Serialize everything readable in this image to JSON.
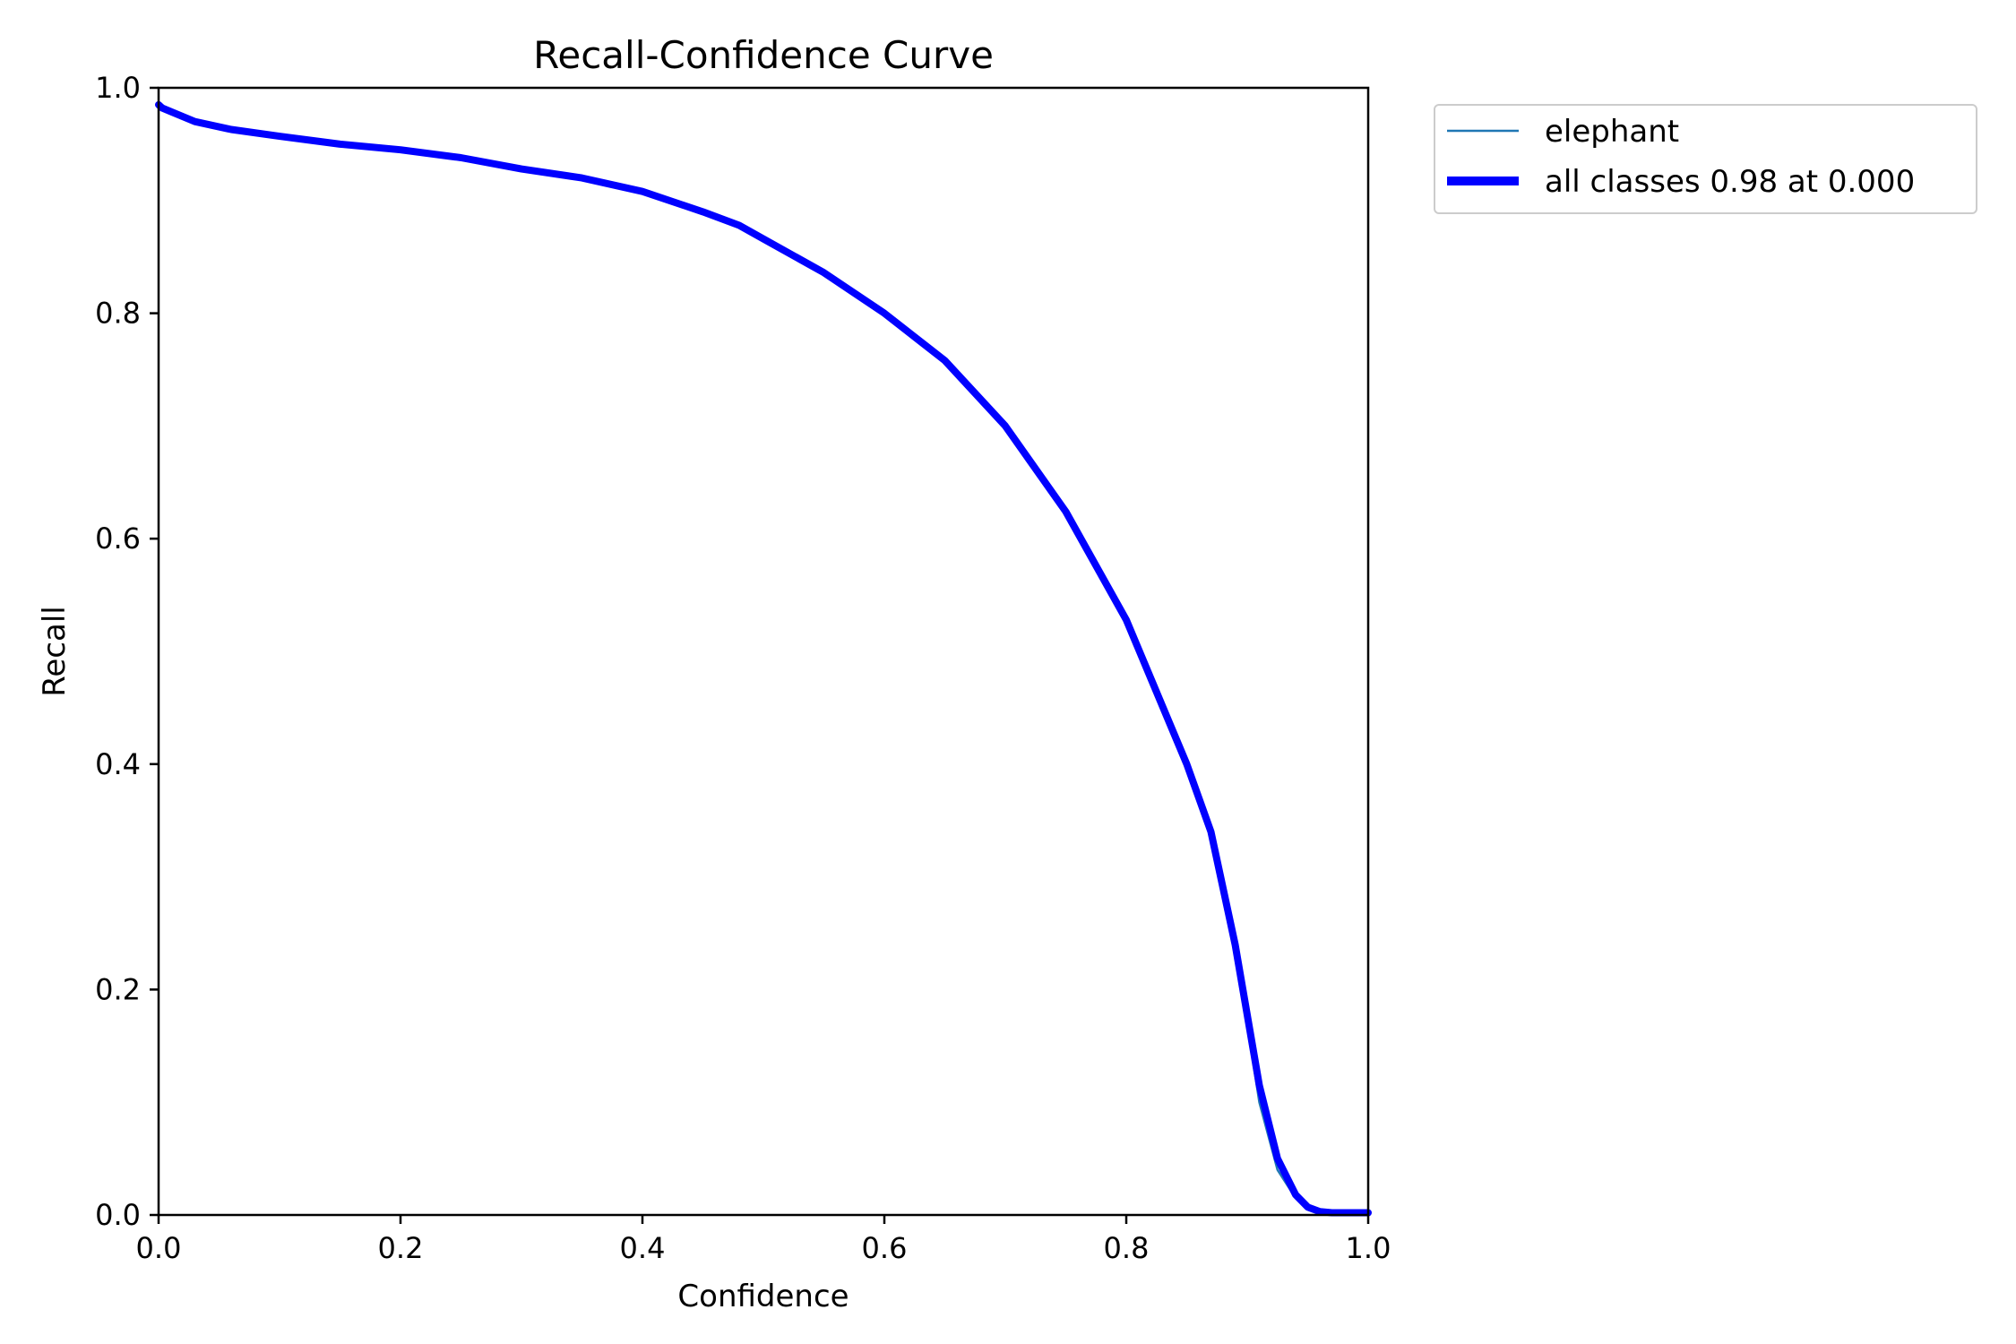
{
  "chart_data": {
    "type": "line",
    "title": "Recall-Confidence Curve",
    "xlabel": "Confidence",
    "ylabel": "Recall",
    "xlim": [
      0,
      1
    ],
    "ylim": [
      0,
      1
    ],
    "xticks": [
      "0.0",
      "0.2",
      "0.4",
      "0.6",
      "0.8",
      "1.0"
    ],
    "yticks": [
      "0.0",
      "0.2",
      "0.4",
      "0.6",
      "0.8",
      "1.0"
    ],
    "grid": false,
    "legend_position": "outside-top-right",
    "series": [
      {
        "name": "elephant",
        "color": "#1f77b4",
        "x": [
          0.0,
          0.003,
          0.03,
          0.06,
          0.1,
          0.15,
          0.2,
          0.25,
          0.3,
          0.35,
          0.4,
          0.45,
          0.48,
          0.5,
          0.55,
          0.6,
          0.65,
          0.7,
          0.75,
          0.8,
          0.85,
          0.87,
          0.89,
          0.91,
          0.925,
          0.94,
          0.95,
          0.96,
          0.97,
          0.98,
          0.99,
          1.0
        ],
        "y": [
          0.985,
          0.982,
          0.97,
          0.963,
          0.957,
          0.95,
          0.945,
          0.938,
          0.928,
          0.92,
          0.908,
          0.89,
          0.878,
          0.866,
          0.836,
          0.8,
          0.758,
          0.7,
          0.624,
          0.528,
          0.4,
          0.34,
          0.24,
          0.1,
          0.04,
          0.015,
          0.005,
          0.002,
          0.001,
          0.001,
          0.001,
          0.001
        ]
      },
      {
        "name": "all classes 0.98 at 0.000",
        "color": "#0000ff",
        "x": [
          0.0,
          0.003,
          0.03,
          0.06,
          0.1,
          0.15,
          0.2,
          0.25,
          0.3,
          0.35,
          0.4,
          0.45,
          0.48,
          0.5,
          0.55,
          0.6,
          0.65,
          0.7,
          0.75,
          0.8,
          0.85,
          0.87,
          0.89,
          0.91,
          0.925,
          0.94,
          0.95,
          0.96,
          0.97,
          0.98,
          0.99,
          1.0
        ],
        "y": [
          0.985,
          0.982,
          0.97,
          0.963,
          0.957,
          0.95,
          0.945,
          0.938,
          0.928,
          0.92,
          0.908,
          0.89,
          0.878,
          0.866,
          0.836,
          0.8,
          0.758,
          0.7,
          0.624,
          0.528,
          0.4,
          0.34,
          0.24,
          0.115,
          0.05,
          0.018,
          0.007,
          0.003,
          0.002,
          0.002,
          0.002,
          0.002
        ]
      }
    ]
  }
}
